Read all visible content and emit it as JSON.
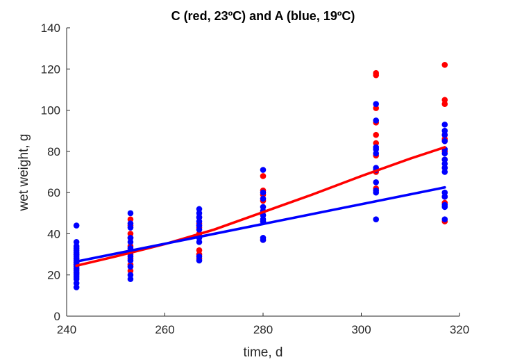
{
  "chart_data": {
    "type": "scatter",
    "title": "C (red, 23ºC) and A (blue, 19ºC)",
    "xlabel": "time, d",
    "ylabel": "wet weight, g",
    "xlim": [
      240,
      320
    ],
    "ylim": [
      0,
      140
    ],
    "xticks": [
      240,
      260,
      280,
      300,
      320
    ],
    "yticks": [
      0,
      20,
      40,
      60,
      80,
      100,
      120,
      140
    ],
    "grid": false,
    "series": [
      {
        "color": "#ff0000",
        "points": [
          [
            242,
            21
          ],
          [
            242,
            23
          ],
          [
            242,
            25
          ],
          [
            242,
            26
          ],
          [
            242,
            28
          ],
          [
            242,
            30
          ],
          [
            253,
            22
          ],
          [
            253,
            25
          ],
          [
            253,
            28
          ],
          [
            253,
            30
          ],
          [
            253,
            32
          ],
          [
            253,
            34
          ],
          [
            253,
            38
          ],
          [
            253,
            40
          ],
          [
            253,
            44
          ],
          [
            253,
            47
          ],
          [
            267,
            28
          ],
          [
            267,
            30
          ],
          [
            267,
            32
          ],
          [
            267,
            40
          ],
          [
            267,
            43
          ],
          [
            267,
            45
          ],
          [
            267,
            48
          ],
          [
            280,
            37
          ],
          [
            280,
            46
          ],
          [
            280,
            49
          ],
          [
            280,
            51
          ],
          [
            280,
            56
          ],
          [
            280,
            59
          ],
          [
            280,
            61
          ],
          [
            280,
            68
          ],
          [
            303,
            62
          ],
          [
            303,
            70
          ],
          [
            303,
            78
          ],
          [
            303,
            84
          ],
          [
            303,
            88
          ],
          [
            303,
            94
          ],
          [
            303,
            101
          ],
          [
            303,
            117
          ],
          [
            303,
            118
          ],
          [
            317,
            46
          ],
          [
            317,
            55
          ],
          [
            317,
            58
          ],
          [
            317,
            72
          ],
          [
            317,
            76
          ],
          [
            317,
            80
          ],
          [
            317,
            85
          ],
          [
            317,
            86
          ],
          [
            317,
            88
          ],
          [
            317,
            103
          ],
          [
            317,
            105
          ],
          [
            317,
            122
          ]
        ],
        "fit": [
          [
            242,
            24.5
          ],
          [
            250,
            29
          ],
          [
            260,
            35
          ],
          [
            270,
            42
          ],
          [
            280,
            50.5
          ],
          [
            290,
            59
          ],
          [
            300,
            68
          ],
          [
            310,
            76.5
          ],
          [
            317,
            82
          ]
        ]
      },
      {
        "color": "#0000ff",
        "points": [
          [
            242,
            14
          ],
          [
            242,
            16
          ],
          [
            242,
            18
          ],
          [
            242,
            19
          ],
          [
            242,
            20
          ],
          [
            242,
            21
          ],
          [
            242,
            22
          ],
          [
            242,
            23
          ],
          [
            242,
            24
          ],
          [
            242,
            25
          ],
          [
            242,
            26
          ],
          [
            242,
            27
          ],
          [
            242,
            28
          ],
          [
            242,
            29
          ],
          [
            242,
            30
          ],
          [
            242,
            31
          ],
          [
            242,
            32
          ],
          [
            242,
            33
          ],
          [
            242,
            34
          ],
          [
            242,
            36
          ],
          [
            242,
            44
          ],
          [
            253,
            18
          ],
          [
            253,
            20
          ],
          [
            253,
            24
          ],
          [
            253,
            27
          ],
          [
            253,
            29
          ],
          [
            253,
            31
          ],
          [
            253,
            33
          ],
          [
            253,
            36
          ],
          [
            253,
            38
          ],
          [
            253,
            43
          ],
          [
            253,
            45
          ],
          [
            253,
            50
          ],
          [
            267,
            27
          ],
          [
            267,
            29
          ],
          [
            267,
            36
          ],
          [
            267,
            38
          ],
          [
            267,
            42
          ],
          [
            267,
            44
          ],
          [
            267,
            46
          ],
          [
            267,
            48
          ],
          [
            267,
            50
          ],
          [
            267,
            52
          ],
          [
            280,
            37
          ],
          [
            280,
            38
          ],
          [
            280,
            46
          ],
          [
            280,
            47
          ],
          [
            280,
            49
          ],
          [
            280,
            51
          ],
          [
            280,
            53
          ],
          [
            280,
            57
          ],
          [
            280,
            60
          ],
          [
            280,
            71
          ],
          [
            303,
            47
          ],
          [
            303,
            60
          ],
          [
            303,
            61
          ],
          [
            303,
            65
          ],
          [
            303,
            71
          ],
          [
            303,
            72
          ],
          [
            303,
            79
          ],
          [
            303,
            81
          ],
          [
            303,
            82
          ],
          [
            303,
            95
          ],
          [
            303,
            103
          ],
          [
            317,
            47
          ],
          [
            317,
            53
          ],
          [
            317,
            54
          ],
          [
            317,
            58
          ],
          [
            317,
            60
          ],
          [
            317,
            70
          ],
          [
            317,
            72
          ],
          [
            317,
            74
          ],
          [
            317,
            76
          ],
          [
            317,
            79
          ],
          [
            317,
            81
          ],
          [
            317,
            85
          ],
          [
            317,
            88
          ],
          [
            317,
            90
          ],
          [
            317,
            93
          ]
        ],
        "fit": [
          [
            242,
            26.5
          ],
          [
            317,
            62.5
          ]
        ]
      }
    ]
  }
}
